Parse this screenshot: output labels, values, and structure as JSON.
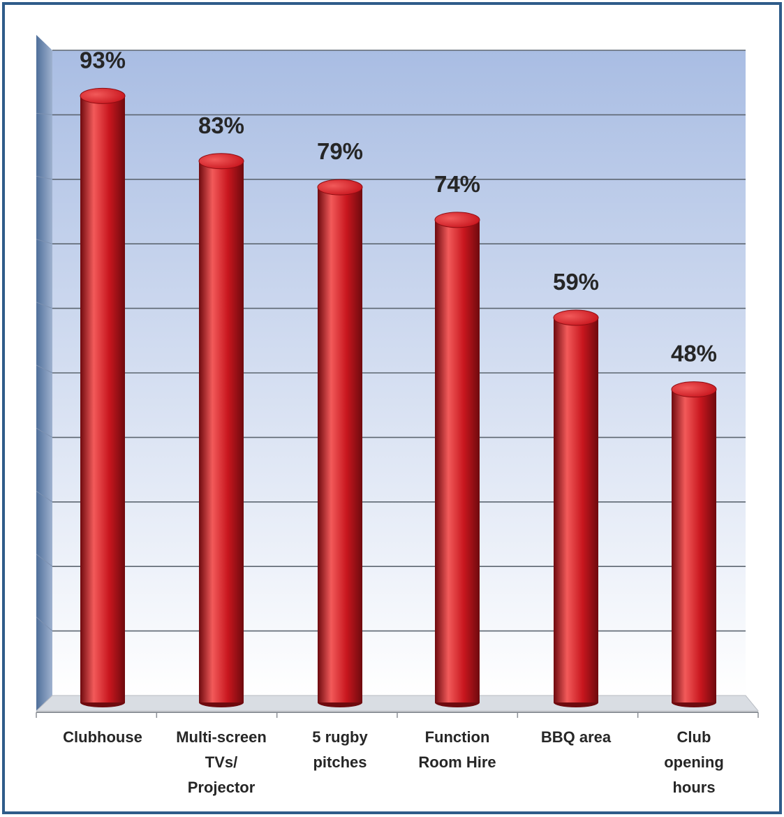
{
  "chart_data": {
    "type": "bar",
    "categories": [
      [
        "Clubhouse"
      ],
      [
        "Multi-screen",
        "TVs/",
        "Projector"
      ],
      [
        "5 rugby",
        "pitches"
      ],
      [
        "Function",
        "Room Hire"
      ],
      [
        "BBQ area"
      ],
      [
        "Club",
        "opening",
        "hours"
      ]
    ],
    "values": [
      93,
      83,
      79,
      74,
      59,
      48
    ],
    "value_labels": [
      "93%",
      "83%",
      "79%",
      "74%",
      "59%",
      "48%"
    ],
    "ylim": [
      0,
      100
    ],
    "gridlines": 10,
    "grid": true,
    "legend": "none",
    "colors": {
      "bar": "#c8161e",
      "bar_highlight": "#f25a5a",
      "bar_shadow": "#6e0a0e",
      "plot_top": "#a9bde3",
      "plot_bottom": "#ffffff",
      "gridline": "#5d6671",
      "frame": "#2f5c8a"
    }
  }
}
